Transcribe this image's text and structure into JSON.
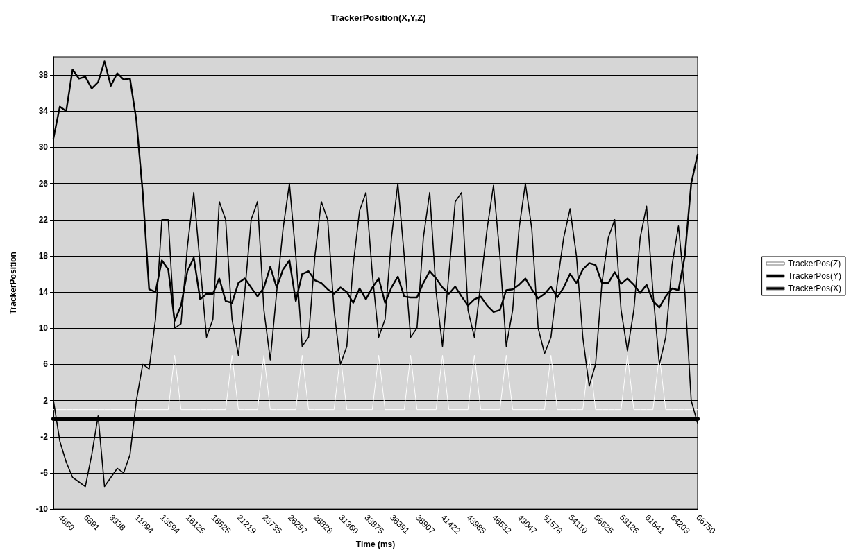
{
  "chart_data": {
    "type": "line",
    "title": "TrackerPosition(X,Y,Z)",
    "xlabel": "Time (ms)",
    "ylabel": "TrackerPosition",
    "categories": [
      null,
      "4860",
      null,
      null,
      null,
      "6891",
      null,
      null,
      null,
      "8938",
      null,
      null,
      null,
      "11094",
      null,
      null,
      null,
      "13594",
      null,
      null,
      null,
      "16125",
      null,
      null,
      null,
      "18625",
      null,
      null,
      null,
      "21219",
      null,
      null,
      null,
      "23735",
      null,
      null,
      null,
      "26297",
      null,
      null,
      null,
      "28828",
      null,
      null,
      null,
      "31360",
      null,
      null,
      null,
      "33875",
      null,
      null,
      null,
      "36391",
      null,
      null,
      null,
      "38907",
      null,
      null,
      null,
      "41422",
      null,
      null,
      null,
      "43985",
      null,
      null,
      null,
      "46532",
      null,
      null,
      null,
      "49047",
      null,
      null,
      null,
      "51578",
      null,
      null,
      null,
      "54110",
      null,
      null,
      null,
      "56625",
      null,
      null,
      null,
      "59125",
      null,
      null,
      null,
      "61641",
      null,
      null,
      null,
      "64203",
      null,
      null,
      null,
      "66750"
    ],
    "series": [
      {
        "name": "TrackerPos(Z)",
        "color": "#ffffff",
        "values": [
          1,
          1,
          1,
          1,
          1,
          1,
          1,
          1,
          1,
          1,
          1,
          1,
          1,
          1,
          1,
          1,
          1,
          1,
          1,
          7,
          1,
          1,
          1,
          1,
          1,
          1,
          1,
          1,
          7,
          1,
          1,
          1,
          1,
          7,
          1,
          1,
          1,
          1,
          1,
          7,
          1,
          1,
          1,
          1,
          1,
          7,
          1,
          1,
          1,
          1,
          1,
          7,
          1,
          1,
          1,
          1,
          7,
          1,
          1,
          1,
          1,
          7,
          1,
          1,
          1,
          1,
          7,
          1,
          1,
          1,
          1,
          7,
          1,
          1,
          1,
          1,
          1,
          1,
          7,
          1,
          1,
          1,
          1,
          1,
          7,
          1,
          1,
          1,
          1,
          1,
          7,
          1,
          1,
          1,
          1,
          7,
          1,
          1,
          1,
          1,
          1,
          1
        ]
      },
      {
        "name": "TrackerPos(Y)",
        "color": "#000000",
        "values": [
          2,
          -2.5,
          -4.8,
          -6.5,
          -7,
          -7.5,
          -4,
          0.3,
          -7.5,
          -6.5,
          -5.5,
          -6,
          -4,
          2,
          6,
          5.5,
          11,
          22,
          22,
          10,
          10.5,
          19,
          25,
          17,
          9,
          11,
          24,
          22,
          11,
          7,
          14,
          22,
          24,
          12,
          6.5,
          14,
          21,
          26,
          18,
          8,
          9,
          18,
          24,
          22,
          12,
          6,
          8,
          17,
          23,
          25,
          16,
          9,
          11,
          20,
          26,
          18,
          9,
          10,
          20,
          25,
          14,
          8,
          16,
          24,
          25,
          12,
          9,
          15,
          21,
          25.8,
          18,
          8,
          12,
          21,
          26,
          21,
          10,
          7.2,
          9,
          15,
          20,
          23.2,
          18,
          9,
          3.6,
          6,
          15,
          20,
          22,
          12,
          7.5,
          12,
          20,
          23.5,
          14,
          6,
          9,
          17,
          21.3,
          14,
          2,
          -0.5
        ]
      },
      {
        "name": "TrackerPos(X)",
        "color": "#000000",
        "values": [
          31,
          34.5,
          34,
          38.6,
          37.6,
          37.8,
          36.5,
          37.2,
          39.5,
          36.8,
          38.2,
          37.5,
          37.6,
          33,
          25,
          14.3,
          14,
          17.5,
          16.5,
          10.8,
          12.5,
          16.3,
          17.8,
          13.2,
          13.8,
          13.8,
          15.5,
          13,
          12.8,
          15,
          15.5,
          14.5,
          13.5,
          14.5,
          16.8,
          14.5,
          16.5,
          17.5,
          13,
          16,
          16.3,
          15.3,
          15,
          14.3,
          13.8,
          14.5,
          14,
          12.8,
          14.4,
          13.2,
          14.5,
          15.5,
          12.8,
          14.5,
          15.7,
          13.5,
          13.4,
          13.4,
          15,
          16.3,
          15.5,
          14.5,
          13.8,
          14.6,
          13.5,
          12.5,
          13.2,
          13.5,
          12.5,
          11.8,
          12,
          14.2,
          14.3,
          14.8,
          15.5,
          14.3,
          13.3,
          13.8,
          14.6,
          13.4,
          14.5,
          16,
          15,
          16.5,
          17.2,
          17,
          15,
          15,
          16.2,
          14.9,
          15.5,
          14.8,
          13.9,
          14.8,
          13,
          12.3,
          13.5,
          14.4,
          14.2,
          18,
          26,
          29.2
        ]
      }
    ],
    "ylim": [
      -10,
      40
    ],
    "yticks": [
      -10,
      -6,
      -2,
      2,
      6,
      10,
      14,
      18,
      22,
      26,
      30,
      34,
      38
    ],
    "grid": "y",
    "legend": "right"
  }
}
